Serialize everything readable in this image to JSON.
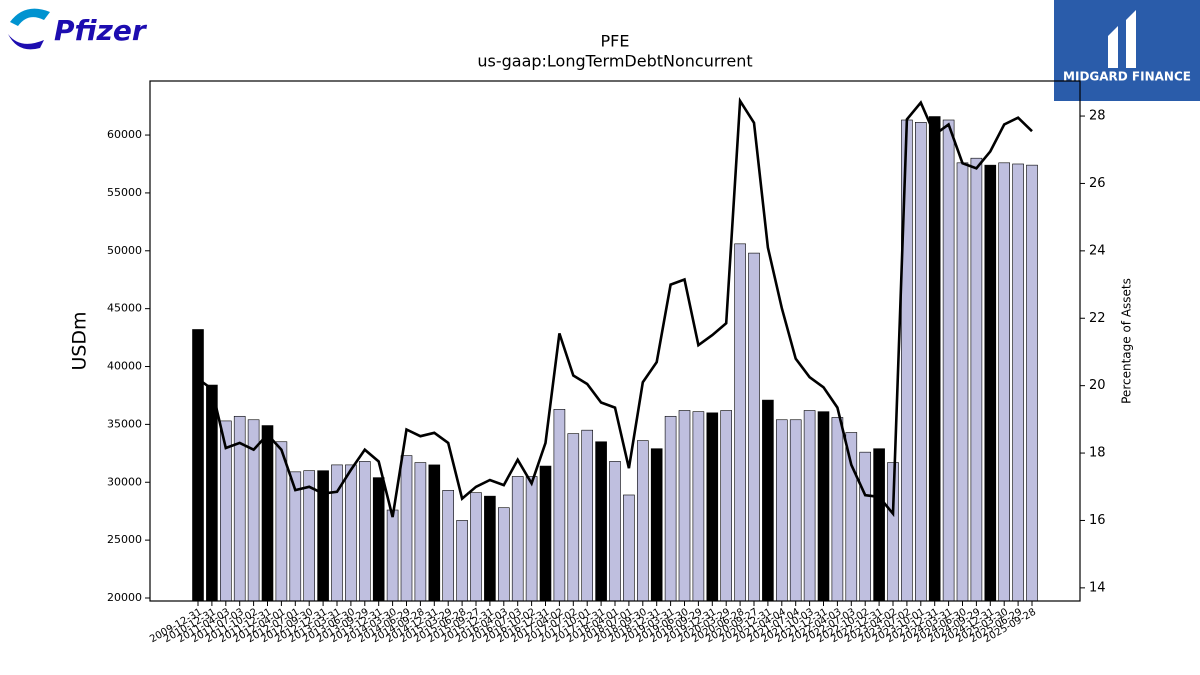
{
  "chart_data": {
    "type": "bar_line",
    "title": "PFE",
    "subtitle": "us-gaap:LongTermDebtNoncurrent",
    "y_label": "USDm",
    "y2_label": "Percentage of Assets",
    "logos": [
      "Pfizer",
      "MIDGARD FINANCE"
    ],
    "categories": [
      "2009-12-31",
      "2010-12-31",
      "2011-04-03",
      "2011-07-03",
      "2011-10-02",
      "2011-12-31",
      "2012-04-01",
      "2012-07-01",
      "2012-09-30",
      "2012-12-31",
      "2013-03-31",
      "2013-06-30",
      "2013-09-29",
      "2013-12-31",
      "2014-03-30",
      "2014-06-29",
      "2014-09-28",
      "2014-12-31",
      "2015-03-29",
      "2015-06-28",
      "2015-09-27",
      "2015-12-31",
      "2016-04-03",
      "2016-07-03",
      "2016-10-02",
      "2016-12-31",
      "2017-04-02",
      "2017-07-02",
      "2017-10-01",
      "2017-12-31",
      "2018-04-01",
      "2018-07-01",
      "2018-09-30",
      "2018-12-31",
      "2019-03-31",
      "2019-06-30",
      "2019-09-29",
      "2019-12-31",
      "2020-03-29",
      "2020-06-28",
      "2020-09-27",
      "2020-12-31",
      "2021-04-04",
      "2021-07-04",
      "2021-10-03",
      "2021-12-31",
      "2022-04-03",
      "2022-07-03",
      "2022-10-02",
      "2022-12-31",
      "2023-04-02",
      "2023-07-02",
      "2023-10-01",
      "2023-12-31",
      "2024-03-31",
      "2024-06-30",
      "2024-09-29",
      "2024-12-31",
      "2025-03-30",
      "2025-06-29",
      "2025-09-28"
    ],
    "series": [
      {
        "name": "Long-Term Debt",
        "type": "bar",
        "values": [
          43200,
          38400,
          35300,
          35700,
          35400,
          34900,
          33500,
          30900,
          31000,
          31000,
          31500,
          31500,
          31800,
          30400,
          27600,
          32300,
          31700,
          31500,
          29300,
          26700,
          29100,
          28800,
          27800,
          30500,
          30500,
          31400,
          36300,
          34200,
          34500,
          33500,
          31800,
          28900,
          33600,
          32900,
          35700,
          36200,
          36100,
          36000,
          36200,
          50600,
          49800,
          37100,
          35400,
          35400,
          36200,
          36100,
          35600,
          34300,
          32600,
          32900,
          31700,
          61300,
          61100,
          61600,
          61300,
          57600,
          58000,
          57400,
          57600,
          57500,
          57400
        ],
        "colors": [
          "#000000",
          "#000000",
          "#bfbfdf",
          "#bfbfdf",
          "#bfbfdf",
          "#000000",
          "#bfbfdf",
          "#bfbfdf",
          "#bfbfdf",
          "#000000",
          "#bfbfdf",
          "#bfbfdf",
          "#bfbfdf",
          "#000000",
          "#bfbfdf",
          "#bfbfdf",
          "#bfbfdf",
          "#000000",
          "#bfbfdf",
          "#bfbfdf",
          "#bfbfdf",
          "#000000",
          "#bfbfdf",
          "#bfbfdf",
          "#bfbfdf",
          "#000000",
          "#bfbfdf",
          "#bfbfdf",
          "#bfbfdf",
          "#000000",
          "#bfbfdf",
          "#bfbfdf",
          "#bfbfdf",
          "#000000",
          "#bfbfdf",
          "#bfbfdf",
          "#bfbfdf",
          "#000000",
          "#bfbfdf",
          "#bfbfdf",
          "#bfbfdf",
          "#000000",
          "#bfbfdf",
          "#bfbfdf",
          "#bfbfdf",
          "#000000",
          "#bfbfdf",
          "#bfbfdf",
          "#bfbfdf",
          "#000000",
          "#bfbfdf",
          "#bfbfdf",
          "#bfbfdf",
          "#000000",
          "#bfbfdf",
          "#bfbfdf",
          "#bfbfdf",
          "#000000",
          "#bfbfdf",
          "#bfbfdf",
          "#bfbfdf"
        ]
      },
      {
        "name": "Percentage of Assets",
        "type": "line",
        "axis": "y2",
        "color": "#000000",
        "values": [
          20.2,
          19.9,
          18.15,
          18.3,
          18.1,
          18.55,
          18.1,
          16.9,
          17.0,
          16.8,
          16.85,
          17.5,
          18.1,
          17.75,
          16.1,
          18.7,
          18.5,
          18.6,
          18.3,
          16.65,
          17.0,
          17.2,
          17.05,
          17.8,
          17.1,
          18.3,
          21.55,
          20.3,
          20.05,
          19.5,
          19.35,
          17.55,
          20.1,
          20.7,
          23.0,
          23.15,
          21.2,
          21.5,
          21.85,
          28.45,
          27.8,
          24.1,
          22.3,
          20.8,
          20.25,
          19.95,
          19.35,
          17.65,
          16.75,
          16.7,
          16.2,
          27.9,
          28.4,
          27.45,
          27.75,
          26.6,
          26.45,
          26.95,
          27.75,
          27.95,
          27.55
        ]
      }
    ],
    "ylim": [
      19740,
      64670
    ],
    "yticks": [
      20000,
      25000,
      30000,
      35000,
      40000,
      45000,
      50000,
      55000,
      60000
    ],
    "y2lim": [
      13.61,
      29.04
    ],
    "y2ticks": [
      14,
      16,
      18,
      20,
      22,
      24,
      26,
      28
    ]
  }
}
